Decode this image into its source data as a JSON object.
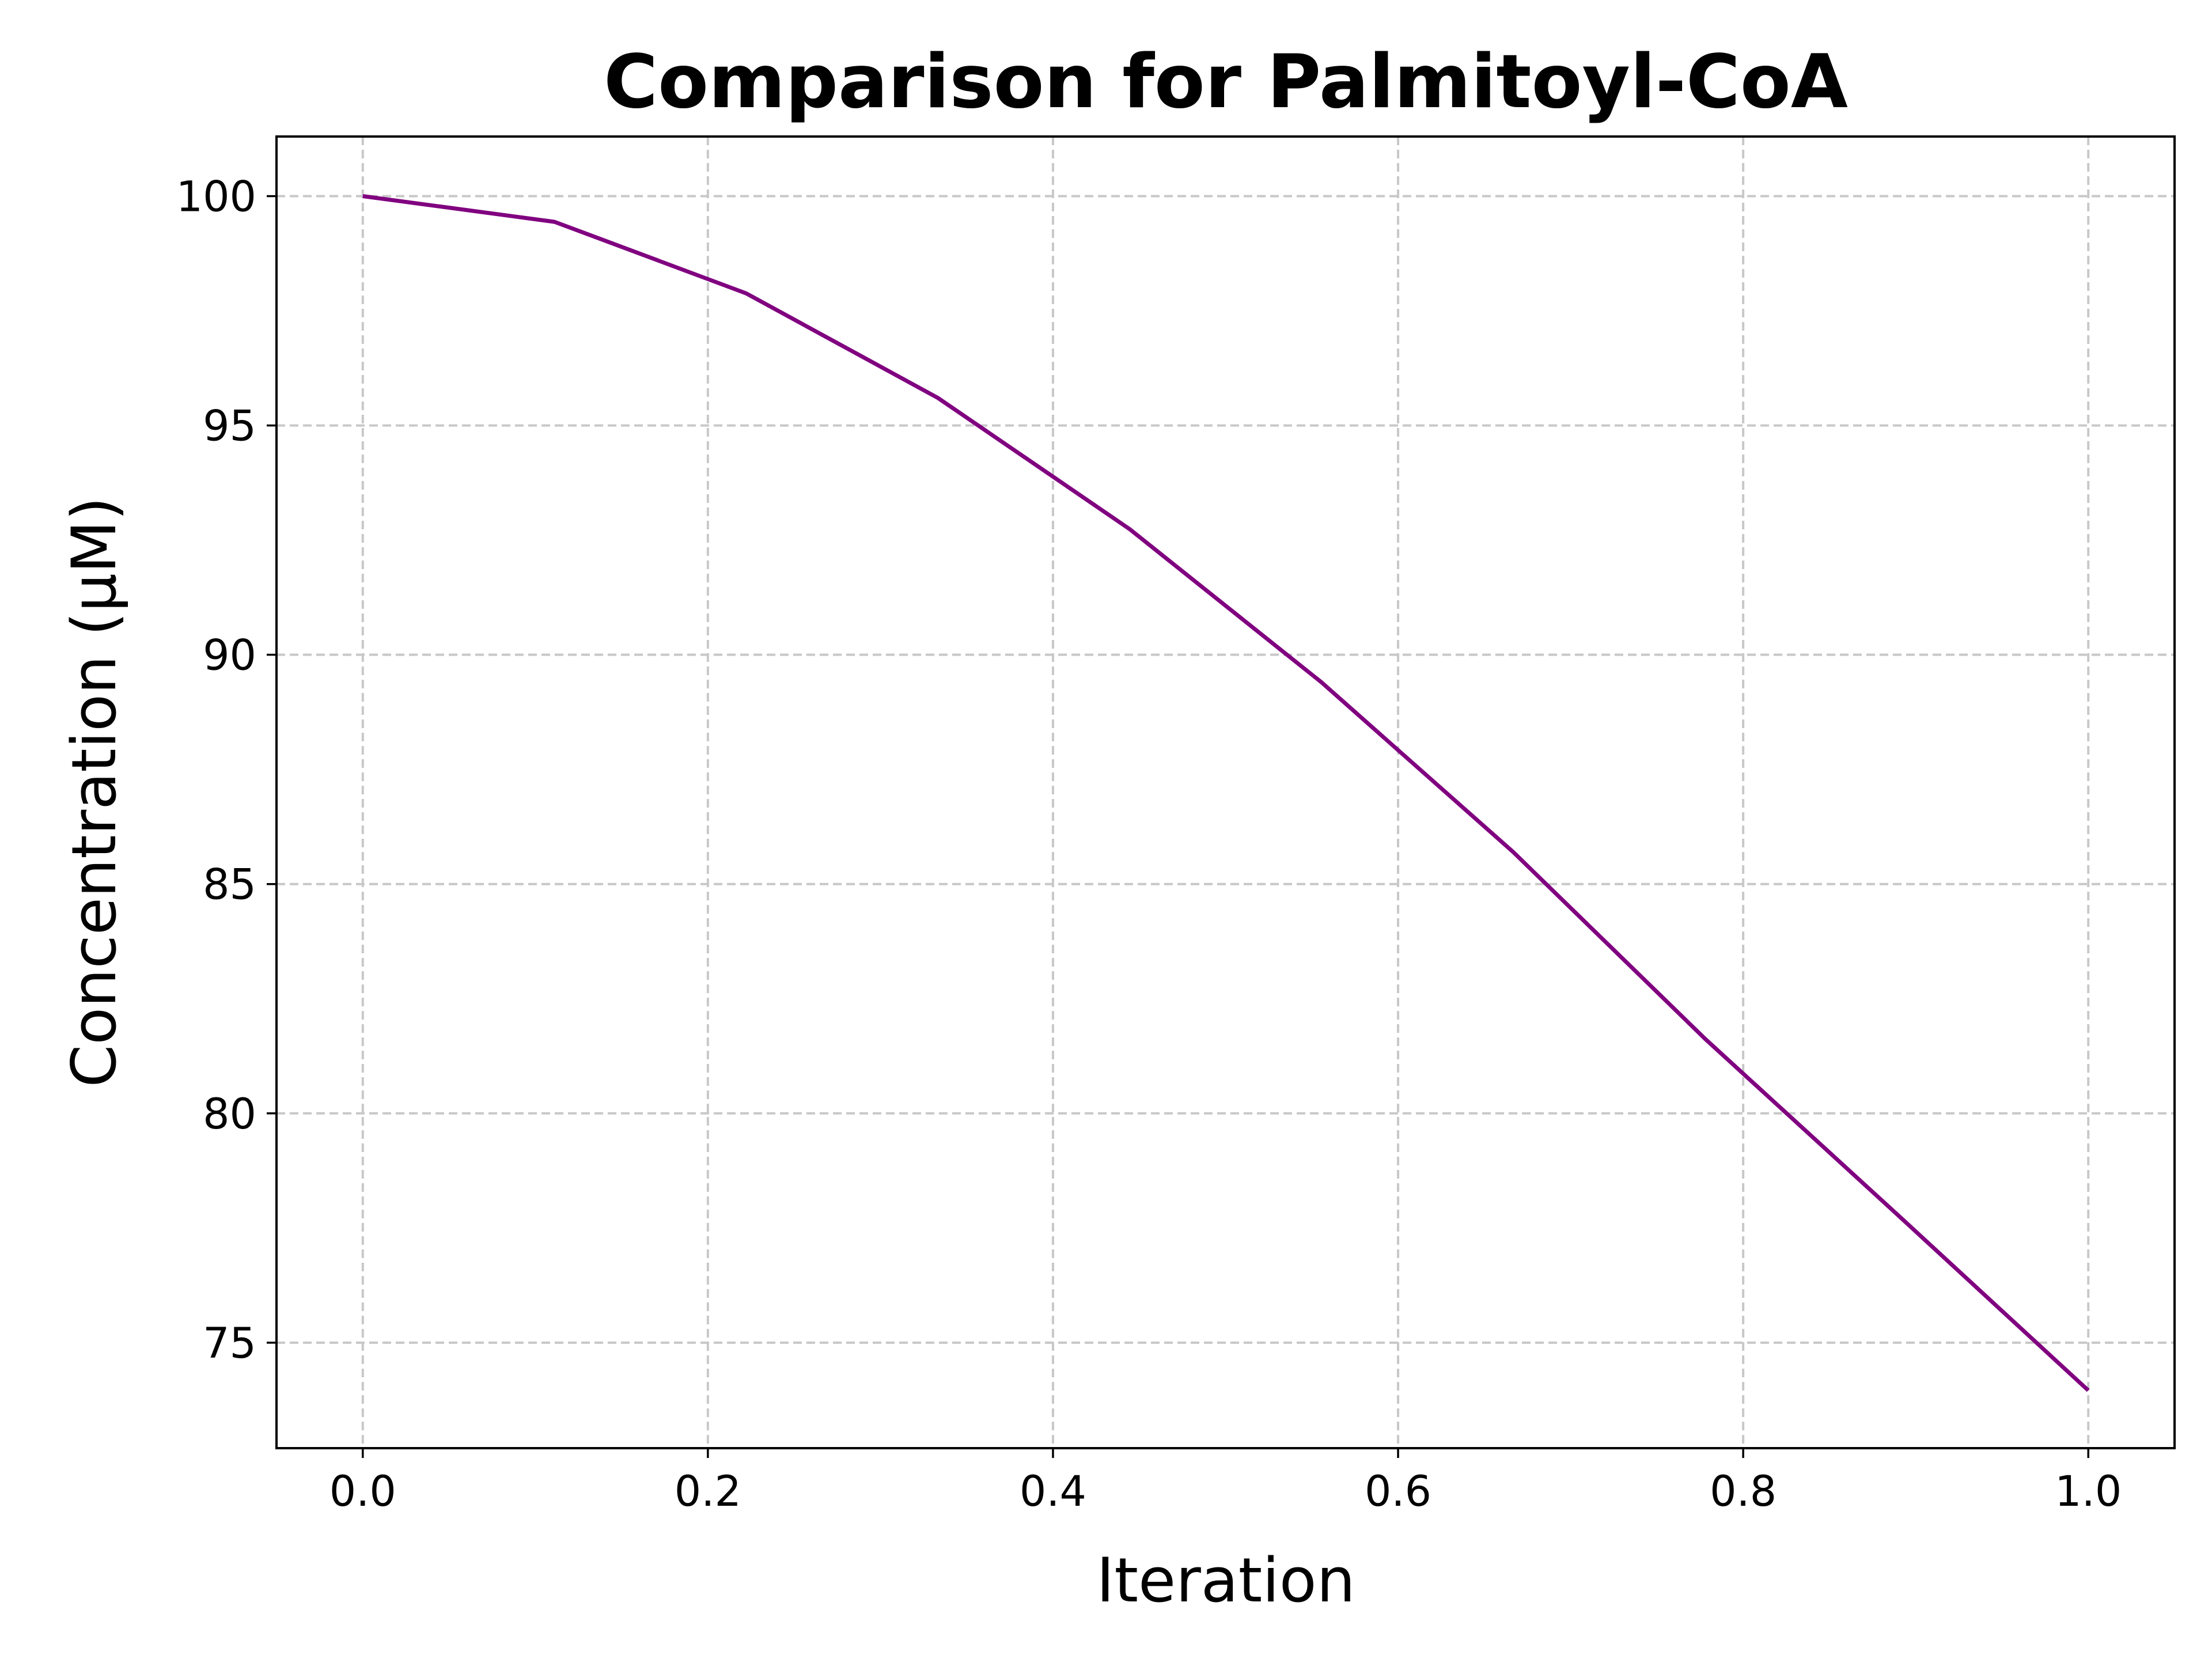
{
  "chart_data": {
    "type": "line",
    "title": "Comparison for Palmitoyl-CoA",
    "xlabel": "Iteration",
    "ylabel": "Concentration (μM)",
    "xlim": [
      -0.05,
      1.05
    ],
    "ylim": [
      72.7,
      101.3
    ],
    "xticks": [
      0.0,
      0.2,
      0.4,
      0.6,
      0.8,
      1.0
    ],
    "xtick_labels": [
      "0.0",
      "0.2",
      "0.4",
      "0.6",
      "0.8",
      "1.0"
    ],
    "yticks": [
      75,
      80,
      85,
      90,
      95,
      100
    ],
    "ytick_labels": [
      "75",
      "80",
      "85",
      "90",
      "95",
      "100"
    ],
    "grid": true,
    "legend": "none",
    "series": [
      {
        "color": "#800080",
        "x": [
          0.0,
          0.1111,
          0.2222,
          0.3333,
          0.4444,
          0.5556,
          0.6667,
          0.7778,
          0.8889,
          1.0
        ],
        "y": [
          100.0,
          99.44,
          97.88,
          95.6,
          92.74,
          89.4,
          85.7,
          81.63,
          77.81,
          73.96
        ]
      }
    ]
  }
}
